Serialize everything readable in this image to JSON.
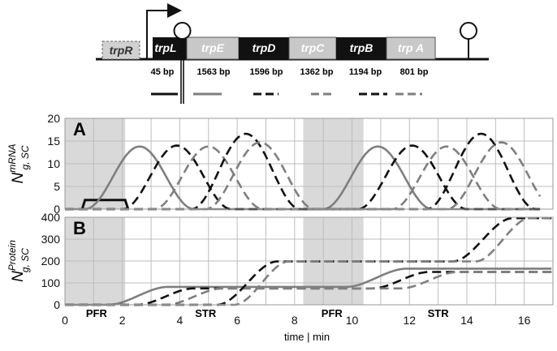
{
  "operon": {
    "regulator": "trpR",
    "genes": [
      {
        "name": "trpL",
        "bp": "45 bp"
      },
      {
        "name": "trpE",
        "bp": "1563 bp"
      },
      {
        "name": "trpD",
        "bp": "1596 bp"
      },
      {
        "name": "trpC",
        "bp": "1362 bp"
      },
      {
        "name": "trpB",
        "bp": "1194 bp"
      },
      {
        "name": "trp A",
        "bp": "801 bp"
      }
    ]
  },
  "colors": {
    "black": "#111111",
    "gray": "#7f7f7f",
    "shade": "#d9d9d9",
    "grid": "#bdbdbd"
  },
  "chart_data": [
    {
      "type": "line",
      "panel": "A",
      "ylabel": "N_{g,SC}^{mRNA}",
      "ylabel_main": "N",
      "ylabel_sub": "g, SC",
      "ylabel_sup": "mRNA",
      "xlim": [
        0,
        17
      ],
      "ylim": [
        0,
        20
      ],
      "yticks": [
        0,
        5,
        10,
        15,
        20
      ],
      "shaded_periods": [
        [
          0,
          2.1
        ],
        [
          8.3,
          10.4
        ]
      ],
      "series": [
        {
          "gene": "trpL",
          "color": "black",
          "dash": "solid",
          "kind": "plateau",
          "points": [
            [
              0.6,
              0
            ],
            [
              0.7,
              2
            ],
            [
              2.1,
              2
            ],
            [
              2.2,
              0
            ]
          ]
        },
        {
          "gene": "trpE",
          "color": "gray",
          "dash": "solid",
          "kind": "bell",
          "peaks": [
            [
              2.6,
              13.8
            ],
            [
              10.9,
              13.8
            ]
          ],
          "halfwidth": 1.9
        },
        {
          "gene": "trpD",
          "color": "black",
          "dash": "dash",
          "kind": "bell",
          "peaks": [
            [
              3.9,
              14.0
            ],
            [
              12.1,
              14.0
            ]
          ],
          "halfwidth": 1.9
        },
        {
          "gene": "trpC",
          "color": "gray",
          "dash": "dash",
          "kind": "bell",
          "peaks": [
            [
              5.0,
              13.8
            ],
            [
              13.3,
              13.8
            ]
          ],
          "halfwidth": 1.9
        },
        {
          "gene": "trpB",
          "color": "black",
          "dash": "dash",
          "kind": "bell",
          "peaks": [
            [
              6.3,
              16.6
            ],
            [
              14.5,
              16.6
            ]
          ],
          "halfwidth": 1.9
        },
        {
          "gene": "trpA",
          "color": "gray",
          "dash": "dash",
          "kind": "bell",
          "peaks": [
            [
              6.8,
              14.7
            ],
            [
              15.2,
              14.7
            ]
          ],
          "halfwidth": 1.9
        }
      ]
    },
    {
      "type": "line",
      "panel": "B",
      "ylabel": "N_{g,SC}^{Protein}",
      "ylabel_main": "N",
      "ylabel_sub": "g, SC",
      "ylabel_sup": "Protein",
      "xlabel": "time | min",
      "xlim": [
        0,
        17
      ],
      "ylim": [
        0,
        400
      ],
      "yticks": [
        0,
        100,
        200,
        300,
        400
      ],
      "xticks": [
        0,
        2,
        4,
        6,
        8,
        10,
        12,
        14,
        16
      ],
      "shaded_periods": [
        [
          0,
          2.1
        ],
        [
          8.3,
          10.4
        ]
      ],
      "period_labels": [
        {
          "text": "PFR",
          "x": 1.1
        },
        {
          "text": "STR",
          "x": 4.9
        },
        {
          "text": "PFR",
          "x": 9.3
        },
        {
          "text": "STR",
          "x": 13.0
        }
      ],
      "series": [
        {
          "gene": "trpE",
          "color": "gray",
          "dash": "solid",
          "kind": "steps",
          "steps": [
            [
              1.5,
              3.6,
              82
            ],
            [
              9.8,
              11.9,
              83
            ]
          ]
        },
        {
          "gene": "trpD",
          "color": "black",
          "dash": "dash",
          "kind": "steps",
          "steps": [
            [
              2.5,
              4.5,
              75
            ],
            [
              10.7,
              12.7,
              75
            ]
          ]
        },
        {
          "gene": "trpC",
          "color": "gray",
          "dash": "dash",
          "kind": "steps",
          "steps": [
            [
              3.5,
              5.5,
              75
            ],
            [
              11.7,
              13.7,
              75
            ]
          ]
        },
        {
          "gene": "trpB",
          "color": "black",
          "dash": "dash",
          "kind": "steps",
          "steps": [
            [
              5.3,
              7.4,
              198
            ],
            [
              13.5,
              15.6,
              198
            ]
          ]
        },
        {
          "gene": "trpA",
          "color": "gray",
          "dash": "dash",
          "kind": "steps",
          "steps": [
            [
              5.9,
              7.8,
              198
            ],
            [
              14.3,
              16.2,
              198
            ]
          ]
        }
      ]
    }
  ]
}
